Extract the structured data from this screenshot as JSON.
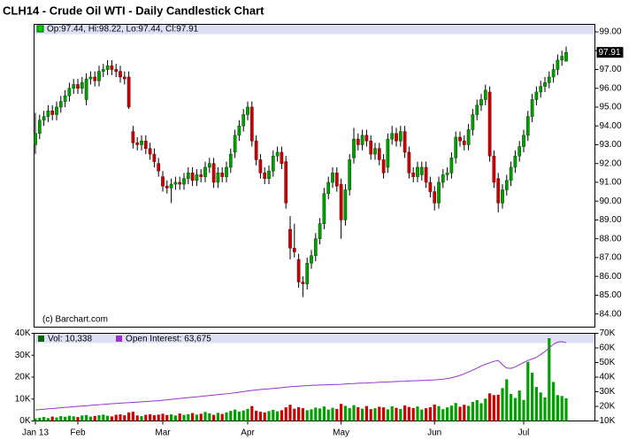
{
  "chart_data": [
    {
      "type": "candlestick",
      "title": "CLH14 - Crude Oil WTI - Daily Candlestick Chart",
      "legend": "Op:97.44, Hi:98.22, Lo:97.44, Cl:97.91",
      "watermark": "(c) Barchart.com",
      "up_color": "#00a000",
      "down_color": "#cc0000",
      "open": [
        93.0,
        93.6,
        94.3,
        94.5,
        94.8,
        94.6,
        95.0,
        95.3,
        95.6,
        96.0,
        96.2,
        96.0,
        95.4,
        96.5,
        96.6,
        96.4,
        96.9,
        97.0,
        97.2,
        97.0,
        96.9,
        96.6,
        96.6,
        93.7,
        93.1,
        93.0,
        93.2,
        92.8,
        92.5,
        92.0,
        91.3,
        90.8,
        90.7,
        90.9,
        91.0,
        90.9,
        91.2,
        91.5,
        91.1,
        91.4,
        91.3,
        91.8,
        92.0,
        91.0,
        91.5,
        91.3,
        91.8,
        92.6,
        93.5,
        94.0,
        94.6,
        95.0,
        93.2,
        92.2,
        91.5,
        91.2,
        91.6,
        92.4,
        92.6,
        92.1,
        88.5,
        87.5,
        86.9,
        85.7,
        85.6,
        86.7,
        87.1,
        88.0,
        88.8,
        90.4,
        91.0,
        91.5,
        90.9,
        89.0,
        90.6,
        92.3,
        93.3,
        93.0,
        93.5,
        93.2,
        92.5,
        92.8,
        92.2,
        91.8,
        93.3,
        93.6,
        93.2,
        93.7,
        92.6,
        91.5,
        91.3,
        91.4,
        91.8,
        91.0,
        90.5,
        89.9,
        91.0,
        91.4,
        91.5,
        92.3,
        93.4,
        93.2,
        93.0,
        93.8,
        94.6,
        95.1,
        95.4,
        95.8,
        92.4,
        91.2,
        89.9,
        90.6,
        91.1,
        91.8,
        92.4,
        92.9,
        93.5,
        94.5,
        95.4,
        95.8,
        96.1,
        96.3,
        96.6,
        97.0,
        97.5,
        97.44
      ],
      "high": [
        94.7,
        94.6,
        94.8,
        95.1,
        95.1,
        95.3,
        95.6,
        95.9,
        96.3,
        96.5,
        96.5,
        96.6,
        96.8,
        96.9,
        96.9,
        97.2,
        97.3,
        97.5,
        97.5,
        97.3,
        97.2,
        96.9,
        96.9,
        94.0,
        93.4,
        93.5,
        93.5,
        93.1,
        92.8,
        92.3,
        91.6,
        91.1,
        91.2,
        91.3,
        91.3,
        91.5,
        91.8,
        91.8,
        91.7,
        91.7,
        92.1,
        92.3,
        92.3,
        91.8,
        91.8,
        92.1,
        92.8,
        93.8,
        94.3,
        94.9,
        95.3,
        95.3,
        93.5,
        92.5,
        91.8,
        91.9,
        92.7,
        92.9,
        92.9,
        92.4,
        89.2,
        88.8,
        87.2,
        86.0,
        87.0,
        87.4,
        88.3,
        89.1,
        90.7,
        91.3,
        91.8,
        91.8,
        91.2,
        90.9,
        92.5,
        93.9,
        93.6,
        93.8,
        93.8,
        93.5,
        93.1,
        93.1,
        92.5,
        93.6,
        94.0,
        93.9,
        94.0,
        94.0,
        92.9,
        91.8,
        92.1,
        92.1,
        92.1,
        91.3,
        90.8,
        91.3,
        91.7,
        91.8,
        92.6,
        93.7,
        93.7,
        93.5,
        94.1,
        94.9,
        95.4,
        95.7,
        96.2,
        96.1,
        92.7,
        91.5,
        90.9,
        91.4,
        92.1,
        92.7,
        93.2,
        93.8,
        94.8,
        95.7,
        96.1,
        96.4,
        96.6,
        96.9,
        97.3,
        97.8,
        98.0,
        98.22
      ],
      "low": [
        92.5,
        93.3,
        94.0,
        94.2,
        94.3,
        94.3,
        94.7,
        95.0,
        95.3,
        95.7,
        95.7,
        95.7,
        95.1,
        96.2,
        96.1,
        96.1,
        96.6,
        96.7,
        96.7,
        96.6,
        96.3,
        96.2,
        94.9,
        92.8,
        92.7,
        92.7,
        92.5,
        92.2,
        91.8,
        91.3,
        90.5,
        90.4,
        89.9,
        90.6,
        90.6,
        90.6,
        90.9,
        90.8,
        90.8,
        91.0,
        91.0,
        91.5,
        90.7,
        90.7,
        91.0,
        91.0,
        91.5,
        92.3,
        93.2,
        93.7,
        94.3,
        92.9,
        91.9,
        91.2,
        90.9,
        90.9,
        91.3,
        92.1,
        91.7,
        89.6,
        86.9,
        87.0,
        85.4,
        84.9,
        85.3,
        86.4,
        86.8,
        87.7,
        88.5,
        90.1,
        90.7,
        90.5,
        88.0,
        88.7,
        90.3,
        92.0,
        92.7,
        92.7,
        92.9,
        92.2,
        92.2,
        91.9,
        91.2,
        91.5,
        93.0,
        92.9,
        92.9,
        92.3,
        91.2,
        91.0,
        91.0,
        91.1,
        90.7,
        90.2,
        89.5,
        89.6,
        90.7,
        91.1,
        91.2,
        92.0,
        92.9,
        92.7,
        92.7,
        93.5,
        94.3,
        94.8,
        95.1,
        92.1,
        90.7,
        89.4,
        89.6,
        90.3,
        90.8,
        91.5,
        92.1,
        92.6,
        93.2,
        94.2,
        95.1,
        95.5,
        95.8,
        96.0,
        96.3,
        96.7,
        97.2,
        97.44
      ],
      "close": [
        93.6,
        94.3,
        94.5,
        94.8,
        94.6,
        95.0,
        95.3,
        95.6,
        96.0,
        96.2,
        96.0,
        96.3,
        96.5,
        96.6,
        96.4,
        96.9,
        97.0,
        97.2,
        97.0,
        96.9,
        96.6,
        96.5,
        95.0,
        93.1,
        93.0,
        93.2,
        92.8,
        92.5,
        92.1,
        91.6,
        90.8,
        90.7,
        90.9,
        91.0,
        90.9,
        91.2,
        91.5,
        91.1,
        91.4,
        91.3,
        91.8,
        92.0,
        91.0,
        91.5,
        91.3,
        91.8,
        92.5,
        93.5,
        94.0,
        94.6,
        95.0,
        93.2,
        92.2,
        91.5,
        91.2,
        91.6,
        92.4,
        92.6,
        92.0,
        89.9,
        87.5,
        87.3,
        85.7,
        85.6,
        86.7,
        87.1,
        88.0,
        88.8,
        90.4,
        91.0,
        91.5,
        90.8,
        89.0,
        90.6,
        92.2,
        93.3,
        93.0,
        93.5,
        93.2,
        92.5,
        92.8,
        92.2,
        91.5,
        93.3,
        93.6,
        93.2,
        93.7,
        92.6,
        91.5,
        91.3,
        91.8,
        91.8,
        91.0,
        90.5,
        89.9,
        91.0,
        91.4,
        91.5,
        92.3,
        93.4,
        93.2,
        93.0,
        93.8,
        94.6,
        95.1,
        95.4,
        95.9,
        92.4,
        91.0,
        89.9,
        90.6,
        91.1,
        91.8,
        92.4,
        92.9,
        93.5,
        94.5,
        95.4,
        95.8,
        96.1,
        96.3,
        96.6,
        97.0,
        97.5,
        97.7,
        97.91
      ],
      "ylim": [
        83.3,
        99.4
      ],
      "yticks": [
        {
          "value": 84,
          "label": "84.00"
        },
        {
          "value": 85,
          "label": "85.00"
        },
        {
          "value": 86,
          "label": "86.00"
        },
        {
          "value": 87,
          "label": "87.00"
        },
        {
          "value": 88,
          "label": "88.00"
        },
        {
          "value": 89,
          "label": "89.00"
        },
        {
          "value": 90,
          "label": "90.00"
        },
        {
          "value": 91,
          "label": "91.00"
        },
        {
          "value": 92,
          "label": "92.00"
        },
        {
          "value": 93,
          "label": "93.00"
        },
        {
          "value": 94,
          "label": "94.00"
        },
        {
          "value": 95,
          "label": "95.00"
        },
        {
          "value": 96,
          "label": "96.00"
        },
        {
          "value": 97,
          "label": "97.00"
        },
        {
          "value": 98,
          "label": "98.00"
        },
        {
          "value": 99,
          "label": "99.00"
        }
      ]
    },
    {
      "type": "bar",
      "categories": [
        "Jan 13",
        null,
        null,
        null,
        null,
        null,
        null,
        null,
        null,
        null,
        "Feb",
        null,
        null,
        null,
        null,
        null,
        null,
        null,
        null,
        null,
        null,
        null,
        null,
        null,
        null,
        null,
        null,
        null,
        null,
        null,
        "Mar",
        null,
        null,
        null,
        null,
        null,
        null,
        null,
        null,
        null,
        null,
        null,
        null,
        null,
        null,
        null,
        null,
        null,
        null,
        null,
        "Apr",
        null,
        null,
        null,
        null,
        null,
        null,
        null,
        null,
        null,
        null,
        null,
        null,
        null,
        null,
        null,
        null,
        null,
        null,
        null,
        null,
        null,
        "May",
        null,
        null,
        null,
        null,
        null,
        null,
        null,
        null,
        null,
        null,
        null,
        null,
        null,
        null,
        null,
        null,
        null,
        null,
        null,
        null,
        null,
        "Jun",
        null,
        null,
        null,
        null,
        null,
        null,
        null,
        null,
        null,
        null,
        null,
        null,
        null,
        null,
        null,
        null,
        null,
        null,
        null,
        null,
        "Jul",
        null,
        null,
        null,
        null,
        null,
        null,
        null,
        null,
        null,
        null
      ],
      "series": [
        {
          "name": "Vol: 10,338",
          "color": "#006600",
          "values": [
            1200,
            1500,
            1800,
            1300,
            2000,
            1600,
            2200,
            1900,
            2400,
            2100,
            1800,
            2500,
            2700,
            2000,
            2300,
            2600,
            2900,
            2400,
            2100,
            2800,
            3000,
            2600,
            3900,
            4200,
            2500,
            2200,
            2800,
            3100,
            2600,
            2900,
            3300,
            2700,
            3000,
            2500,
            3400,
            2800,
            3100,
            3600,
            2900,
            3300,
            4100,
            3500,
            2800,
            3700,
            3200,
            3900,
            4600,
            5200,
            4300,
            4800,
            5500,
            6800,
            4700,
            4200,
            3900,
            4500,
            5100,
            4400,
            4900,
            6200,
            7400,
            5600,
            6300,
            5800,
            4900,
            5300,
            6100,
            5700,
            6600,
            5200,
            6000,
            5500,
            7800,
            6900,
            5900,
            7200,
            6300,
            5600,
            6800,
            5400,
            5800,
            6500,
            6200,
            5300,
            6700,
            6000,
            5500,
            7100,
            6400,
            5900,
            6600,
            5200,
            5800,
            6300,
            7500,
            6800,
            5400,
            6200,
            7000,
            8200,
            6500,
            7400,
            6900,
            8700,
            9500,
            8100,
            10200,
            12600,
            11800,
            12000,
            15000,
            19000,
            12300,
            10500,
            13900,
            9600,
            27000,
            22000,
            15500,
            13000,
            10800,
            37800,
            17800,
            11800,
            11400,
            10338
          ]
        },
        {
          "name": "Open Interest: 63,675",
          "color": "#9933cc",
          "axis": "y2",
          "values": [
            17500,
            17800,
            18000,
            18300,
            18500,
            18800,
            19000,
            19300,
            19500,
            19800,
            20000,
            20200,
            20400,
            20700,
            20900,
            21100,
            21400,
            21600,
            21800,
            22000,
            22200,
            22400,
            22500,
            22700,
            22900,
            23100,
            23300,
            23500,
            23700,
            23900,
            24200,
            24500,
            24800,
            25100,
            25400,
            25700,
            26000,
            26300,
            26500,
            26800,
            27100,
            27400,
            27700,
            28000,
            28300,
            28600,
            28900,
            29300,
            29700,
            30100,
            30500,
            30900,
            31200,
            31500,
            31800,
            32000,
            32300,
            32500,
            32800,
            33100,
            33400,
            33600,
            33800,
            34000,
            34200,
            34400,
            34500,
            34600,
            34700,
            34800,
            34900,
            35000,
            35100,
            35300,
            35500,
            35600,
            35800,
            35900,
            36000,
            36200,
            36300,
            36500,
            36600,
            36700,
            36900,
            37000,
            37100,
            37200,
            37400,
            37500,
            37600,
            37700,
            37800,
            38000,
            38100,
            38300,
            38600,
            39000,
            39600,
            40300,
            41200,
            42300,
            43500,
            44800,
            46200,
            47600,
            48800,
            49800,
            50800,
            51500,
            48500,
            46200,
            46000,
            47000,
            48500,
            50000,
            51500,
            52500,
            53500,
            55500,
            57500,
            60000,
            62500,
            64000,
            64300,
            63675
          ]
        }
      ],
      "ylim": [
        0,
        40000
      ],
      "yticks": [
        {
          "value": 0,
          "label": "0K"
        },
        {
          "value": 10000,
          "label": "10K"
        },
        {
          "value": 20000,
          "label": "20K"
        },
        {
          "value": 30000,
          "label": "30K"
        },
        {
          "value": 40000,
          "label": "40K"
        }
      ],
      "y2lim": [
        10000,
        70000
      ],
      "y2ticks": [
        {
          "value": 10000,
          "label": "10K"
        },
        {
          "value": 20000,
          "label": "20K"
        },
        {
          "value": 30000,
          "label": "30K"
        },
        {
          "value": 40000,
          "label": "40K"
        },
        {
          "value": 50000,
          "label": "50K"
        },
        {
          "value": 60000,
          "label": "60K"
        },
        {
          "value": 70000,
          "label": "70K"
        }
      ]
    }
  ]
}
